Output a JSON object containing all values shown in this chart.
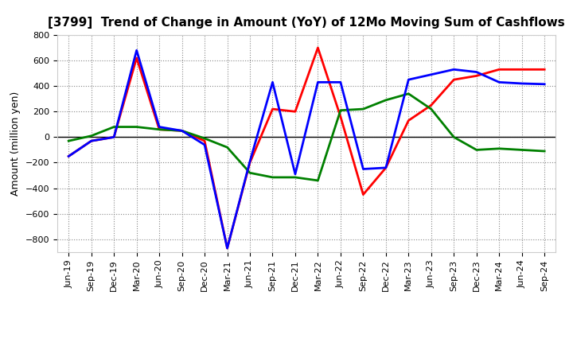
{
  "title": "[3799]  Trend of Change in Amount (YoY) of 12Mo Moving Sum of Cashflows",
  "ylabel": "Amount (million yen)",
  "x_labels": [
    "Jun-19",
    "Sep-19",
    "Dec-19",
    "Mar-20",
    "Jun-20",
    "Sep-20",
    "Dec-20",
    "Mar-21",
    "Jun-21",
    "Sep-21",
    "Dec-21",
    "Mar-22",
    "Jun-22",
    "Sep-22",
    "Dec-22",
    "Mar-23",
    "Jun-23",
    "Sep-23",
    "Dec-23",
    "Mar-24",
    "Jun-24",
    "Sep-24"
  ],
  "operating": [
    -150,
    -30,
    0,
    620,
    60,
    50,
    -30,
    -870,
    -200,
    220,
    200,
    700,
    160,
    -450,
    -240,
    130,
    250,
    450,
    480,
    530,
    530,
    530
  ],
  "investing": [
    -30,
    10,
    80,
    80,
    60,
    50,
    -10,
    -80,
    -280,
    -315,
    -315,
    -340,
    210,
    220,
    290,
    340,
    220,
    0,
    -100,
    -90,
    -100,
    -110
  ],
  "free": [
    -150,
    -30,
    0,
    680,
    80,
    50,
    -60,
    -870,
    -190,
    430,
    -290,
    430,
    430,
    -250,
    -240,
    450,
    490,
    530,
    510,
    430,
    420,
    415
  ],
  "operating_color": "#ff0000",
  "investing_color": "#008000",
  "free_color": "#0000ff",
  "ylim": [
    -900,
    800
  ],
  "yticks": [
    -800,
    -600,
    -400,
    -200,
    0,
    200,
    400,
    600,
    800
  ],
  "background_color": "#ffffff",
  "grid_color": "#888888",
  "title_fontsize": 11,
  "axis_fontsize": 9,
  "tick_fontsize": 8,
  "legend_fontsize": 9,
  "linewidth": 2.0
}
